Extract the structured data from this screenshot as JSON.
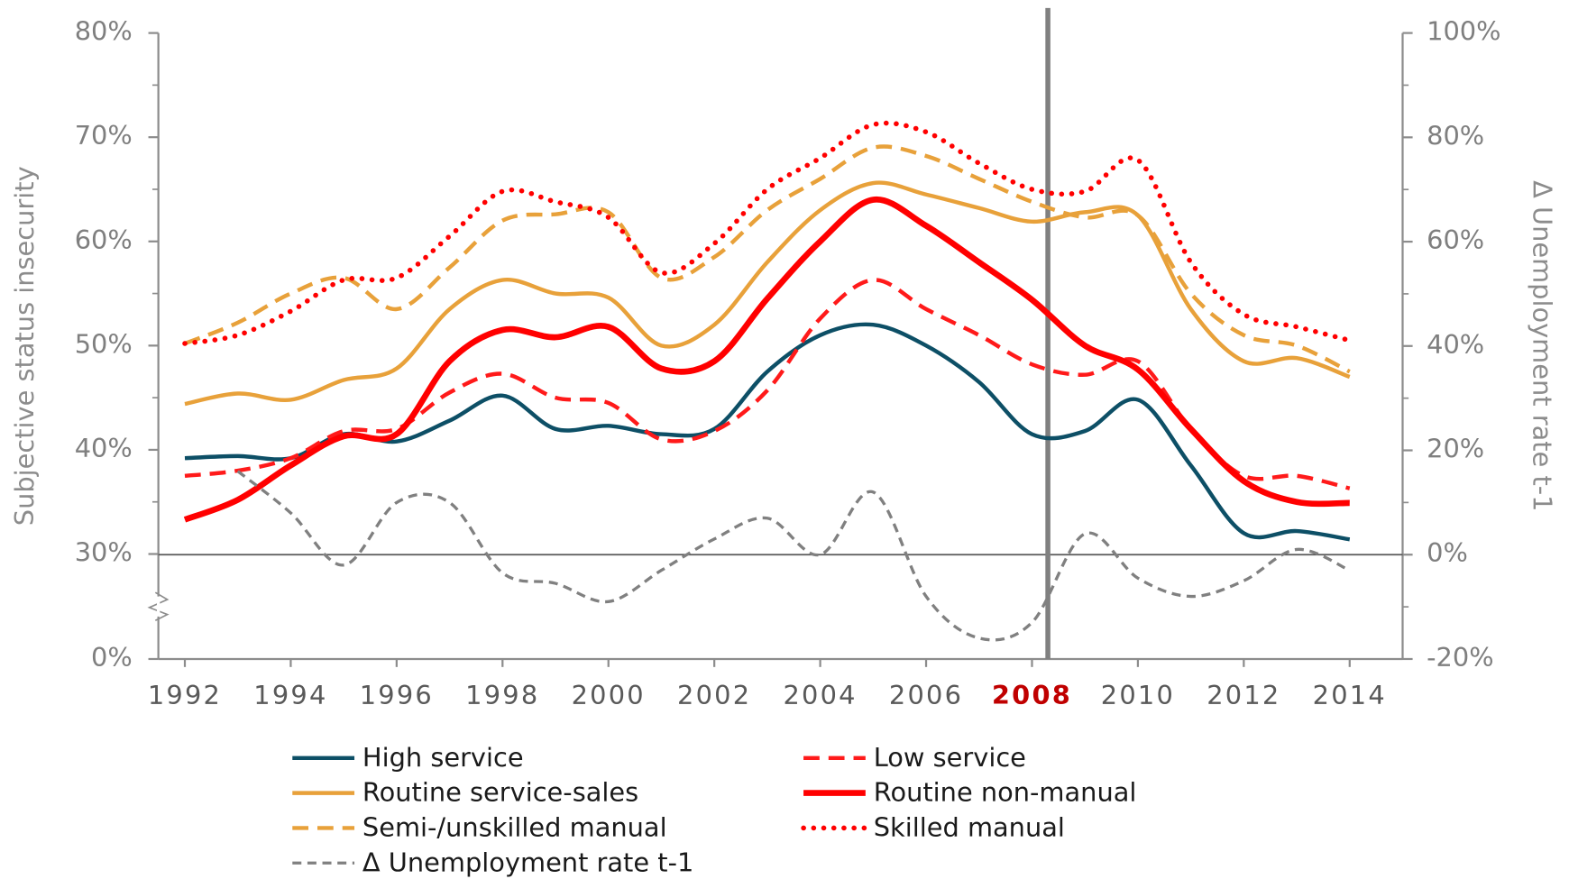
{
  "chart_data": {
    "type": "line",
    "ylabel": "Subjective status insecurity",
    "y2label": "Δ Unemployment rate t-1",
    "x": [
      1992,
      1993,
      1994,
      1995,
      1996,
      1997,
      1998,
      1999,
      2000,
      2001,
      2002,
      2003,
      2004,
      2005,
      2006,
      2007,
      2008,
      2009,
      2010,
      2011,
      2012,
      2013,
      2014
    ],
    "xlim": [
      1991.5,
      2015
    ],
    "xticks": [
      1992,
      1994,
      1996,
      1998,
      2000,
      2002,
      2004,
      2006,
      2008,
      2010,
      2012,
      2014
    ],
    "highlight_xtick": 2008,
    "highlight_color": "#c00000",
    "vline": 2008.3,
    "vline_color": "#808080",
    "ylim": [
      0,
      80
    ],
    "axis_break": [
      0,
      30
    ],
    "yticks": [
      {
        "value": 0,
        "label": "0%"
      },
      {
        "value": 30,
        "label": "30%"
      },
      {
        "value": 40,
        "label": "40%"
      },
      {
        "value": 50,
        "label": "50%"
      },
      {
        "value": 60,
        "label": "60%"
      },
      {
        "value": 70,
        "label": "70%"
      },
      {
        "value": 80,
        "label": "80%"
      }
    ],
    "y2lim": [
      -20,
      100
    ],
    "y2ticks": [
      {
        "value": -20,
        "label": "-20%"
      },
      {
        "value": 0,
        "label": "0%"
      },
      {
        "value": 20,
        "label": "20%"
      },
      {
        "value": 40,
        "label": "40%"
      },
      {
        "value": 60,
        "label": "60%"
      },
      {
        "value": 80,
        "label": "80%"
      },
      {
        "value": 100,
        "label": "100%"
      }
    ],
    "series": [
      {
        "name": "High service",
        "color": "#0d4f66",
        "dash": "solid",
        "width": 4,
        "values": [
          39.2,
          39.4,
          39.2,
          41.5,
          40.8,
          42.8,
          45.2,
          42.0,
          42.3,
          41.5,
          42.0,
          47.5,
          51.0,
          52.0,
          50.0,
          46.5,
          41.5,
          41.8,
          44.8,
          38.5,
          32.0,
          32.2,
          31.4
        ]
      },
      {
        "name": "Low service",
        "color": "#ff1a1a",
        "dash": "dashed",
        "width": 4,
        "values": [
          37.5,
          38.0,
          39.2,
          41.8,
          42.0,
          45.5,
          47.3,
          45.0,
          44.5,
          41.0,
          41.8,
          45.7,
          52.6,
          56.3,
          53.5,
          51.0,
          48.2,
          47.2,
          48.5,
          42.0,
          37.5,
          37.5,
          36.3
        ]
      },
      {
        "name": "Routine service-sales",
        "color": "#e8a13a",
        "dash": "solid",
        "width": 4,
        "values": [
          44.4,
          45.4,
          44.8,
          46.7,
          47.8,
          53.5,
          56.3,
          55.0,
          54.6,
          50.0,
          52.0,
          58.0,
          63.0,
          65.6,
          64.5,
          63.2,
          61.9,
          62.8,
          62.5,
          53.5,
          48.5,
          48.8,
          47.0
        ]
      },
      {
        "name": "Routine non-manual",
        "color": "#ff0000",
        "dash": "solid",
        "width": 6,
        "values": [
          33.3,
          35.2,
          38.5,
          41.3,
          41.5,
          48.5,
          51.5,
          50.8,
          51.8,
          47.8,
          48.5,
          54.5,
          60.0,
          64.0,
          61.5,
          58.0,
          54.4,
          50.0,
          47.7,
          42.0,
          37.0,
          35.0,
          34.9
        ]
      },
      {
        "name": "Semi-/unskilled manual",
        "color": "#e8a13a",
        "dash": "dashed",
        "width": 4,
        "values": [
          50.2,
          52.2,
          55.0,
          56.5,
          53.5,
          57.5,
          62.0,
          62.6,
          62.8,
          56.5,
          58.5,
          63.0,
          66.0,
          69.0,
          68.2,
          66.0,
          63.8,
          62.3,
          62.5,
          55.0,
          51.0,
          50.0,
          47.5
        ]
      },
      {
        "name": "Skilled manual",
        "color": "#ff0000",
        "dash": "dotted",
        "width": 5,
        "values": [
          50.2,
          51.0,
          53.3,
          56.3,
          56.5,
          60.5,
          64.8,
          63.8,
          62.3,
          57.0,
          59.8,
          65.0,
          68.0,
          71.2,
          70.5,
          67.5,
          65.0,
          64.8,
          67.8,
          58.0,
          53.0,
          51.8,
          50.5
        ]
      },
      {
        "name": "Δ Unemployment rate t-1",
        "color": "#808080",
        "dash": "dashed",
        "width": 3,
        "axis": "y2",
        "values": [
          null,
          16,
          8,
          -2,
          10,
          10,
          -3.5,
          -5.5,
          -9,
          -3,
          3,
          7,
          0,
          12,
          -8,
          -16,
          -13,
          4,
          -4.5,
          -8,
          -5,
          1,
          -3
        ]
      }
    ]
  }
}
